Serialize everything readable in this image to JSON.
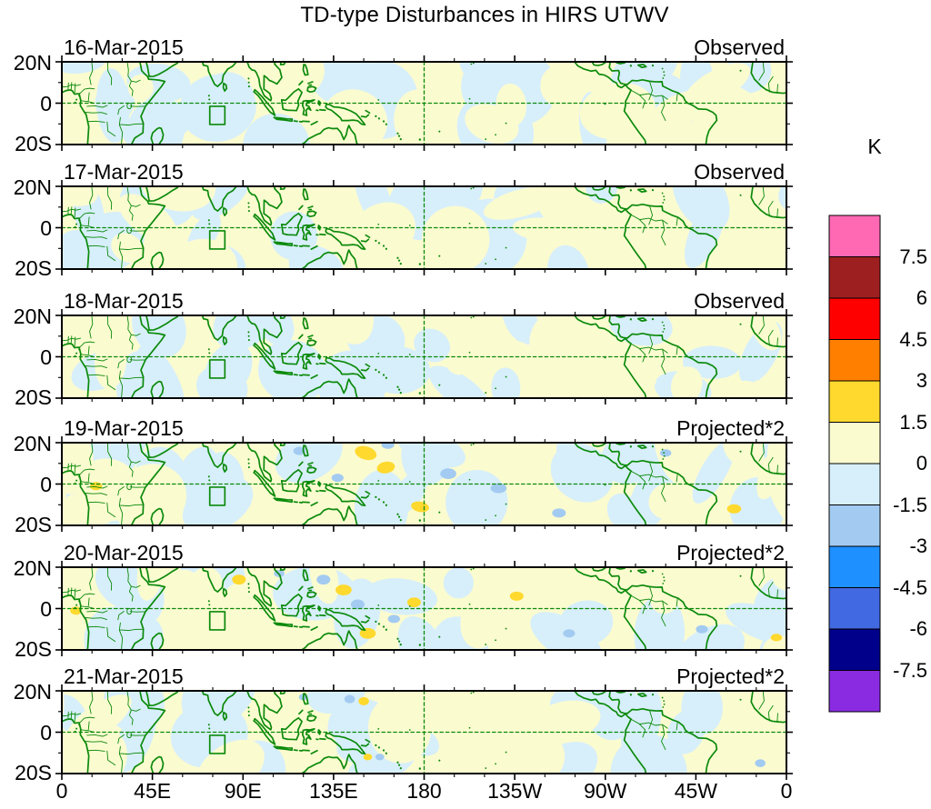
{
  "chart_data": {
    "type": "heatmap",
    "title": "TD-type Disturbances in HIRS UTWV",
    "unit": "K",
    "x_tick_labels": [
      "0",
      "45E",
      "90E",
      "135E",
      "180",
      "135W",
      "90W",
      "45W",
      "0"
    ],
    "y_tick_labels": [
      "20N",
      "0",
      "20S"
    ],
    "lon_range": [
      0,
      360
    ],
    "lat_range": [
      -20,
      20
    ],
    "colorbar": {
      "unit": "K",
      "tick_labels": [
        "7.5",
        "6",
        "4.5",
        "3",
        "1.5",
        "0",
        "-1.5",
        "-3",
        "-4.5",
        "-6",
        "-7.5"
      ],
      "boundaries_K": [
        7.5,
        6,
        4.5,
        3,
        1.5,
        0,
        -1.5,
        -3,
        -4.5,
        -6,
        -7.5
      ],
      "colors_top_to_bottom": [
        "#FF69B4",
        "#9E1F1F",
        "#FF0000",
        "#FF7F00",
        "#FFD92E",
        "#FBFBD0",
        "#D7EFFA",
        "#A3CBF1",
        "#1E90FF",
        "#4169E1",
        "#00008B",
        "#8A2BE2"
      ]
    },
    "field_colors": {
      "weak_positive_0_to_1.5": "#FBFBD0",
      "weak_negative_-1.5_to_0": "#D7EFFA",
      "positive_1.5_to_3": "#FFD92E",
      "positive_3_to_4.5": "#FF7F00",
      "negative_-3_to_-1.5": "#A3CBF1",
      "negative_-4.5_to_-3": "#1E90FF",
      "coastline_green": "#0B8A0B"
    },
    "region_box": {
      "lon": [
        73.5,
        81.0
      ],
      "lat": [
        -10.3,
        -1.5
      ]
    },
    "panels": [
      {
        "date": "16-Mar-2015",
        "source_label": "Observed",
        "anomalies": []
      },
      {
        "date": "17-Mar-2015",
        "source_label": "Observed",
        "anomalies": []
      },
      {
        "date": "18-Mar-2015",
        "source_label": "Observed",
        "anomalies": []
      },
      {
        "date": "19-Mar-2015",
        "source_label": "Projected*2",
        "anomalies": [
          {
            "lon": 17,
            "lat": -1,
            "rx": 3.0,
            "ry": 2.0,
            "rot": 0,
            "band": 2
          },
          {
            "lon": 151,
            "lat": 15,
            "rx": 5.5,
            "ry": 3.2,
            "rot": 15,
            "band": 2
          },
          {
            "lon": 161,
            "lat": 8,
            "rx": 4.5,
            "ry": 2.8,
            "rot": -10,
            "band": 2
          },
          {
            "lon": 178,
            "lat": -11,
            "rx": 4.5,
            "ry": 2.5,
            "rot": 10,
            "band": 2
          },
          {
            "lon": 334,
            "lat": -12,
            "rx": 3.5,
            "ry": 2.2,
            "rot": 0,
            "band": 2
          },
          {
            "lon": 118,
            "lat": 16,
            "rx": 3.0,
            "ry": 2.0,
            "rot": 0,
            "band": -2
          },
          {
            "lon": 162,
            "lat": 19,
            "rx": 3.2,
            "ry": 2.0,
            "rot": 0,
            "band": -2
          },
          {
            "lon": 192,
            "lat": 5,
            "rx": 4.0,
            "ry": 2.6,
            "rot": 0,
            "band": -2
          },
          {
            "lon": 217,
            "lat": -2,
            "rx": 4.0,
            "ry": 2.4,
            "rot": 0,
            "band": -2
          },
          {
            "lon": 247,
            "lat": -14,
            "rx": 3.4,
            "ry": 2.2,
            "rot": 0,
            "band": -2
          },
          {
            "lon": 137,
            "lat": 3,
            "rx": 3.0,
            "ry": 2.0,
            "rot": 0,
            "band": -2
          },
          {
            "lon": 300,
            "lat": 15,
            "rx": 2.8,
            "ry": 1.8,
            "rot": 0,
            "band": -2
          }
        ]
      },
      {
        "date": "20-Mar-2015",
        "source_label": "Projected*2",
        "anomalies": [
          {
            "lon": 7,
            "lat": -1,
            "rx": 2.8,
            "ry": 2.0,
            "rot": 0,
            "band": 2
          },
          {
            "lon": 88,
            "lat": 14,
            "rx": 3.4,
            "ry": 2.4,
            "rot": 0,
            "band": 2
          },
          {
            "lon": 140,
            "lat": 9,
            "rx": 4.0,
            "ry": 2.6,
            "rot": 0,
            "band": 2
          },
          {
            "lon": 152,
            "lat": -12,
            "rx": 4.0,
            "ry": 2.6,
            "rot": 0,
            "band": 2
          },
          {
            "lon": 175,
            "lat": 3,
            "rx": 3.4,
            "ry": 2.4,
            "rot": 0,
            "band": 2
          },
          {
            "lon": 226,
            "lat": 6,
            "rx": 3.4,
            "ry": 2.2,
            "rot": 0,
            "band": 2
          },
          {
            "lon": 355,
            "lat": -14,
            "rx": 2.8,
            "ry": 1.8,
            "rot": 0,
            "band": 2
          },
          {
            "lon": 130,
            "lat": 14,
            "rx": 3.4,
            "ry": 2.4,
            "rot": 0,
            "band": -2
          },
          {
            "lon": 147,
            "lat": 2,
            "rx": 3.4,
            "ry": 2.4,
            "rot": 0,
            "band": -2
          },
          {
            "lon": 252,
            "lat": -12,
            "rx": 3.0,
            "ry": 2.0,
            "rot": 0,
            "band": -2
          },
          {
            "lon": 318,
            "lat": -10,
            "rx": 3.0,
            "ry": 2.0,
            "rot": 0,
            "band": -2
          },
          {
            "lon": 165,
            "lat": -5,
            "rx": 3.0,
            "ry": 2.0,
            "rot": 0,
            "band": -2
          },
          {
            "lon": 108,
            "lat": 17,
            "rx": 2.6,
            "ry": 1.8,
            "rot": 0,
            "band": -2
          }
        ]
      },
      {
        "date": "21-Mar-2015",
        "source_label": "Projected*2",
        "anomalies": [
          {
            "lon": 150,
            "lat": 15,
            "rx": 2.6,
            "ry": 2.0,
            "rot": 0,
            "band": 2
          },
          {
            "lon": 152,
            "lat": -12,
            "rx": 2.2,
            "ry": 1.6,
            "rot": 0,
            "band": 2
          },
          {
            "lon": 143,
            "lat": 16,
            "rx": 2.6,
            "ry": 2.0,
            "rot": 0,
            "band": -2
          },
          {
            "lon": 158,
            "lat": -12,
            "rx": 2.2,
            "ry": 1.6,
            "rot": 0,
            "band": -2
          },
          {
            "lon": 347,
            "lat": -15,
            "rx": 2.6,
            "ry": 1.9,
            "rot": 0,
            "band": -2
          },
          {
            "lon": 120,
            "lat": 17,
            "rx": 2.2,
            "ry": 1.6,
            "rot": 0,
            "band": -2
          }
        ]
      }
    ]
  }
}
